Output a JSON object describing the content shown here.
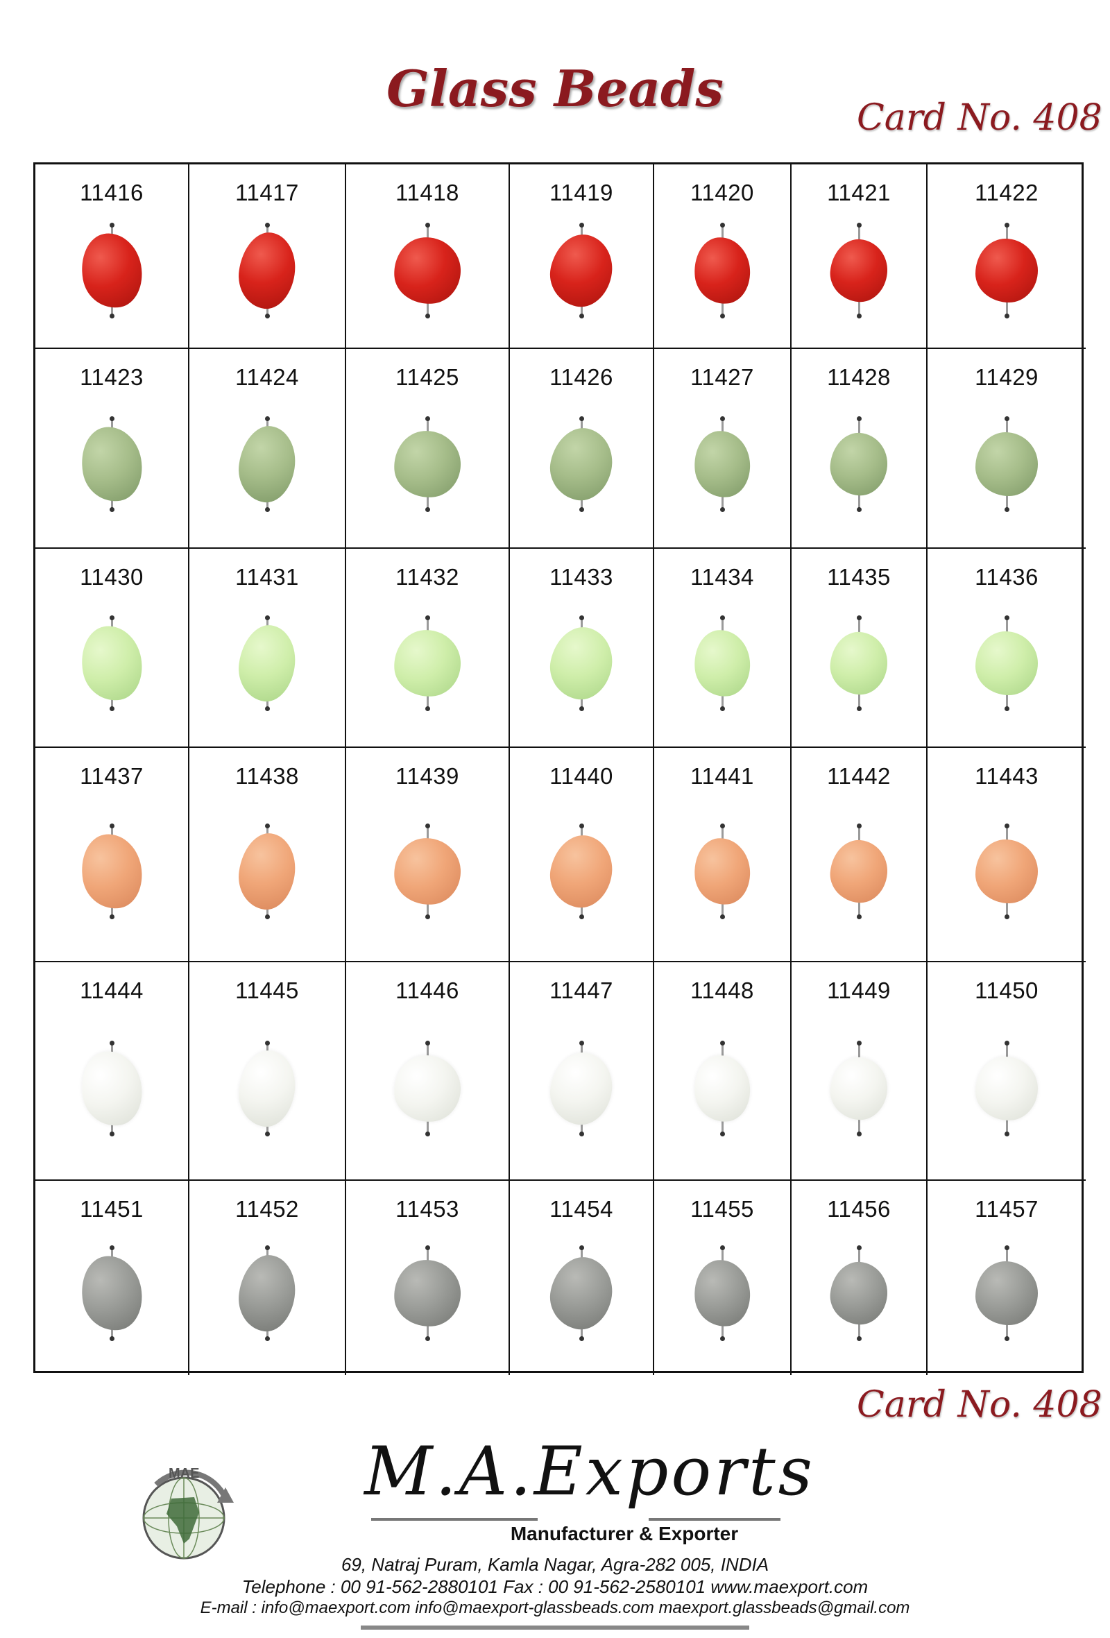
{
  "title": "Glass Beads",
  "card_no_top": "Card No. 408",
  "card_no_bottom": "Card No. 408",
  "rows": [
    {
      "color": "#d8231b",
      "highlight": "#ef5a4e",
      "shadow": "#a8130d",
      "codes": [
        "11416",
        "11417",
        "11418",
        "11419",
        "11420",
        "11421",
        "11422"
      ]
    },
    {
      "color": "#a6bd8a",
      "highlight": "#c2d5a8",
      "shadow": "#7d9866",
      "codes": [
        "11423",
        "11424",
        "11425",
        "11426",
        "11427",
        "11428",
        "11429"
      ]
    },
    {
      "color": "#cfeeaa",
      "highlight": "#e6f8cc",
      "shadow": "#a9d486",
      "codes": [
        "11430",
        "11431",
        "11432",
        "11433",
        "11434",
        "11435",
        "11436"
      ]
    },
    {
      "color": "#f0a678",
      "highlight": "#f7c39e",
      "shadow": "#d9865a",
      "codes": [
        "11437",
        "11438",
        "11439",
        "11440",
        "11441",
        "11442",
        "11443"
      ]
    },
    {
      "color": "#f4f5f0",
      "highlight": "#ffffff",
      "shadow": "#dcdfd6",
      "codes": [
        "11444",
        "11445",
        "11446",
        "11447",
        "11448",
        "11449",
        "11450"
      ]
    },
    {
      "color": "#9a9c98",
      "highlight": "#b9bab6",
      "shadow": "#747672",
      "codes": [
        "11451",
        "11452",
        "11453",
        "11454",
        "11455",
        "11456",
        "11457"
      ]
    }
  ],
  "footer": {
    "logo_text": "MAE",
    "company": "M.A.Exports",
    "tagline": "Manufacturer & Exporter",
    "address": "69, Natraj Puram, Kamla Nagar, Agra-282 005, INDIA",
    "phone": "Telephone : 00 91-562-2880101     Fax : 00 91-562-2580101     www.maexport.com",
    "email": "E-mail : info@maexport.com     info@maexport-glassbeads.com     maexport.glassbeads@gmail.com"
  }
}
